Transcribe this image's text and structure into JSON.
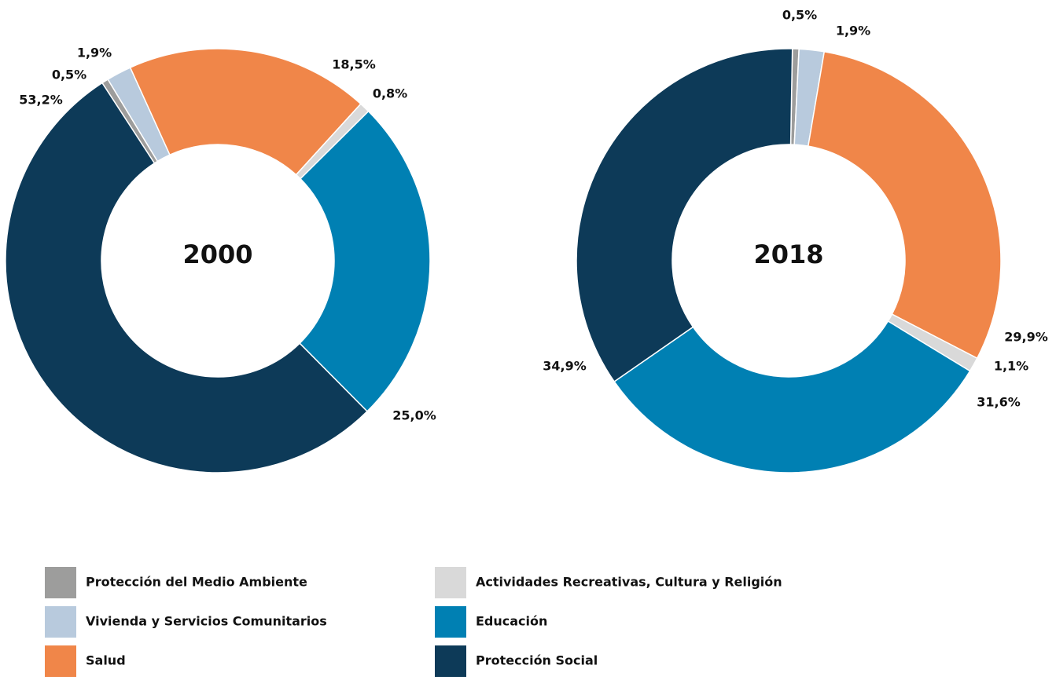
{
  "legend": {
    "labels": [
      "Protección del Medio Ambiente",
      "Vivienda y Servicios Comunitarios",
      "Salud",
      "Actividades Recreativas, Cultura y Religión",
      "Educación",
      "Protección Social"
    ],
    "colors": [
      "#9d9d9c",
      "#b8cadd",
      "#f08649",
      "#d9d9d9",
      "#0080b3",
      "#0d3a58"
    ]
  },
  "chart_data": [
    {
      "type": "pie",
      "title": "2000",
      "values": [
        0.5,
        1.9,
        18.5,
        0.8,
        25.0,
        53.2
      ],
      "value_labels": [
        "0,5%",
        "1,9%",
        "18,5%",
        "0,8%",
        "25,0%",
        "53,2%"
      ]
    },
    {
      "type": "pie",
      "title": "2018",
      "values": [
        0.5,
        1.9,
        29.9,
        1.1,
        31.6,
        34.9
      ],
      "value_labels": [
        "0,5%",
        "1,9%",
        "29,9%",
        "1,1%",
        "31,6%",
        "34,9%"
      ]
    }
  ]
}
